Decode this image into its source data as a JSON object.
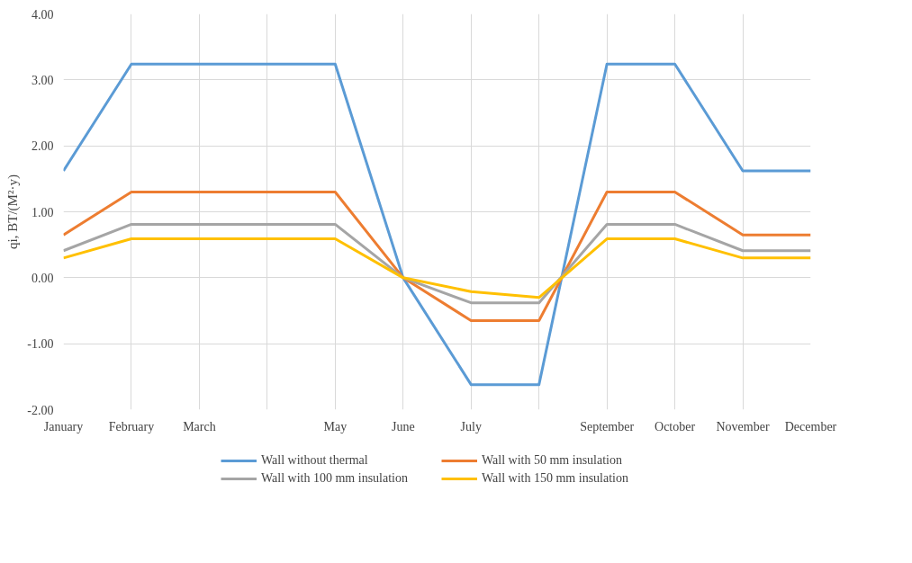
{
  "chart_data": {
    "type": "line",
    "ylabel": "qi, BT/(M²·y)",
    "categories": [
      "January",
      "February",
      "March",
      null,
      "May",
      "June",
      "July",
      null,
      "September",
      "October",
      "November",
      "December"
    ],
    "series": [
      {
        "name": "Wall without thermal",
        "color": "#5b9bd5",
        "values": [
          1.62,
          3.24,
          3.24,
          3.24,
          3.24,
          0,
          -1.62,
          -1.62,
          3.24,
          3.24,
          1.62,
          1.62
        ]
      },
      {
        "name": "Wall with 50 mm insulation",
        "color": "#ed7d31",
        "values": [
          0.65,
          1.3,
          1.3,
          1.3,
          1.3,
          0,
          -0.65,
          -0.65,
          1.3,
          1.3,
          0.65,
          0.65
        ]
      },
      {
        "name": "Wall with 100 mm insulation",
        "color": "#a5a5a5",
        "values": [
          0.41,
          0.81,
          0.81,
          0.81,
          0.81,
          0,
          -0.38,
          -0.38,
          0.81,
          0.81,
          0.41,
          0.41
        ]
      },
      {
        "name": "Wall with 150 mm insulation",
        "color": "#ffc000",
        "values": [
          0.3,
          0.59,
          0.59,
          0.59,
          0.59,
          0,
          -0.21,
          -0.3,
          0.59,
          0.59,
          0.3,
          0.3
        ]
      }
    ],
    "ylim": [
      -2,
      4
    ],
    "yticks": [
      {
        "value": -2,
        "label": "-2.00"
      },
      {
        "value": -1,
        "label": "-1.00"
      },
      {
        "value": 0,
        "label": "0.00"
      },
      {
        "value": 1,
        "label": "1.00"
      },
      {
        "value": 2,
        "label": "2.00"
      },
      {
        "value": 3,
        "label": "3.00"
      },
      {
        "value": 4,
        "label": "4.00"
      }
    ],
    "grid": true,
    "legend": "bottom",
    "marker": "none",
    "line_style": "solid"
  }
}
